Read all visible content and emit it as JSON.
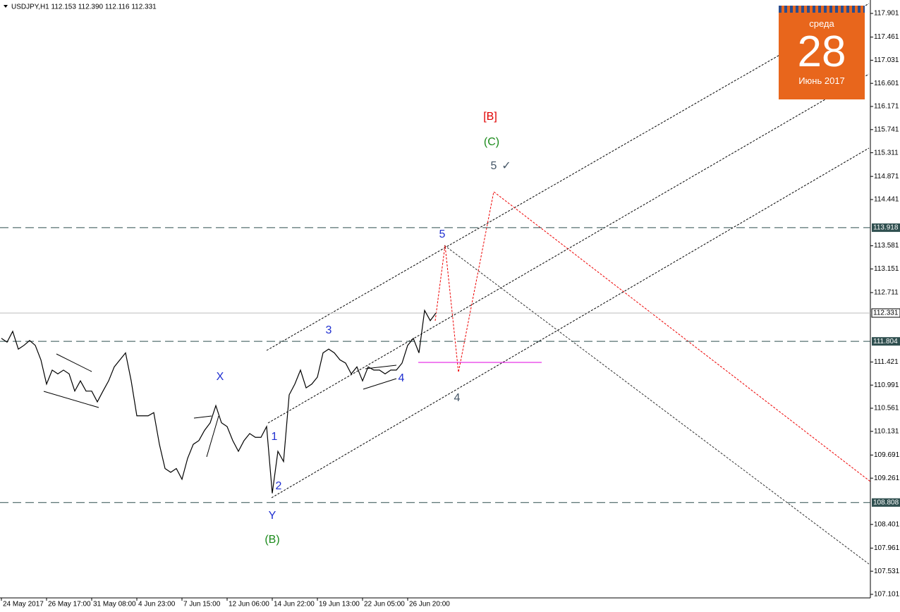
{
  "chart_data": {
    "type": "line",
    "title": "USDJPY,H1  112.153 112.390 112.116 112.331",
    "color": "#000000",
    "categories": [
      "24 May 2017",
      null,
      null,
      null,
      null,
      null,
      null,
      null,
      "26 May 17:00",
      null,
      null,
      null,
      null,
      null,
      null,
      null,
      "31 May 08:00",
      null,
      null,
      null,
      null,
      null,
      null,
      null,
      "4 Jun 23:00",
      null,
      null,
      null,
      null,
      null,
      null,
      null,
      "7 Jun 15:00",
      null,
      null,
      null,
      null,
      null,
      null,
      null,
      "12 Jun 06:00",
      null,
      null,
      null,
      null,
      null,
      null,
      null,
      "14 Jun 22:00",
      null,
      null,
      null,
      null,
      null,
      null,
      null,
      "19 Jun 13:00",
      null,
      null,
      null,
      null,
      null,
      null,
      null,
      "22 Jun 05:00",
      null,
      null,
      null,
      null,
      null,
      null,
      null,
      "26 Jun 20:00",
      null,
      null,
      null,
      null,
      null
    ],
    "values": [
      111.86,
      111.79,
      111.99,
      111.66,
      111.73,
      111.82,
      111.73,
      111.46,
      111.01,
      111.27,
      111.2,
      111.27,
      111.2,
      110.88,
      111.07,
      110.88,
      110.88,
      110.68,
      110.88,
      111.07,
      111.33,
      111.46,
      111.59,
      111.07,
      110.42,
      110.42,
      110.42,
      110.48,
      109.89,
      109.44,
      109.37,
      109.44,
      109.24,
      109.63,
      109.89,
      109.96,
      110.15,
      110.29,
      110.61,
      110.29,
      110.22,
      109.96,
      109.76,
      109.96,
      110.09,
      110.02,
      110.02,
      110.22,
      108.98,
      109.76,
      109.57,
      110.81,
      111.01,
      111.27,
      110.94,
      111.01,
      111.14,
      111.59,
      111.66,
      111.59,
      111.46,
      111.4,
      111.2,
      111.33,
      111.07,
      111.33,
      111.27,
      111.27,
      111.2,
      111.27,
      111.27,
      111.4,
      111.73,
      111.86,
      111.59,
      112.38,
      112.19,
      112.33
    ],
    "ylim": [
      107.035,
      118.098
    ],
    "yticks": [
      117.901,
      117.461,
      117.031,
      116.601,
      116.171,
      115.741,
      115.311,
      114.871,
      114.441,
      113.581,
      113.151,
      112.711,
      111.421,
      110.991,
      110.561,
      110.131,
      109.691,
      109.261,
      108.401,
      107.961,
      107.531,
      107.101
    ],
    "levels": [
      113.918,
      111.804,
      108.808
    ],
    "last_price": 112.331,
    "annotations": [
      "[B]",
      "(C)",
      "5",
      "✓",
      "5",
      "3",
      "X",
      "1",
      "2",
      "Y",
      "(B)",
      "4",
      "4"
    ]
  },
  "calendar": {
    "weekday": "среда",
    "day": "28",
    "month_year": "Июнь 2017"
  }
}
